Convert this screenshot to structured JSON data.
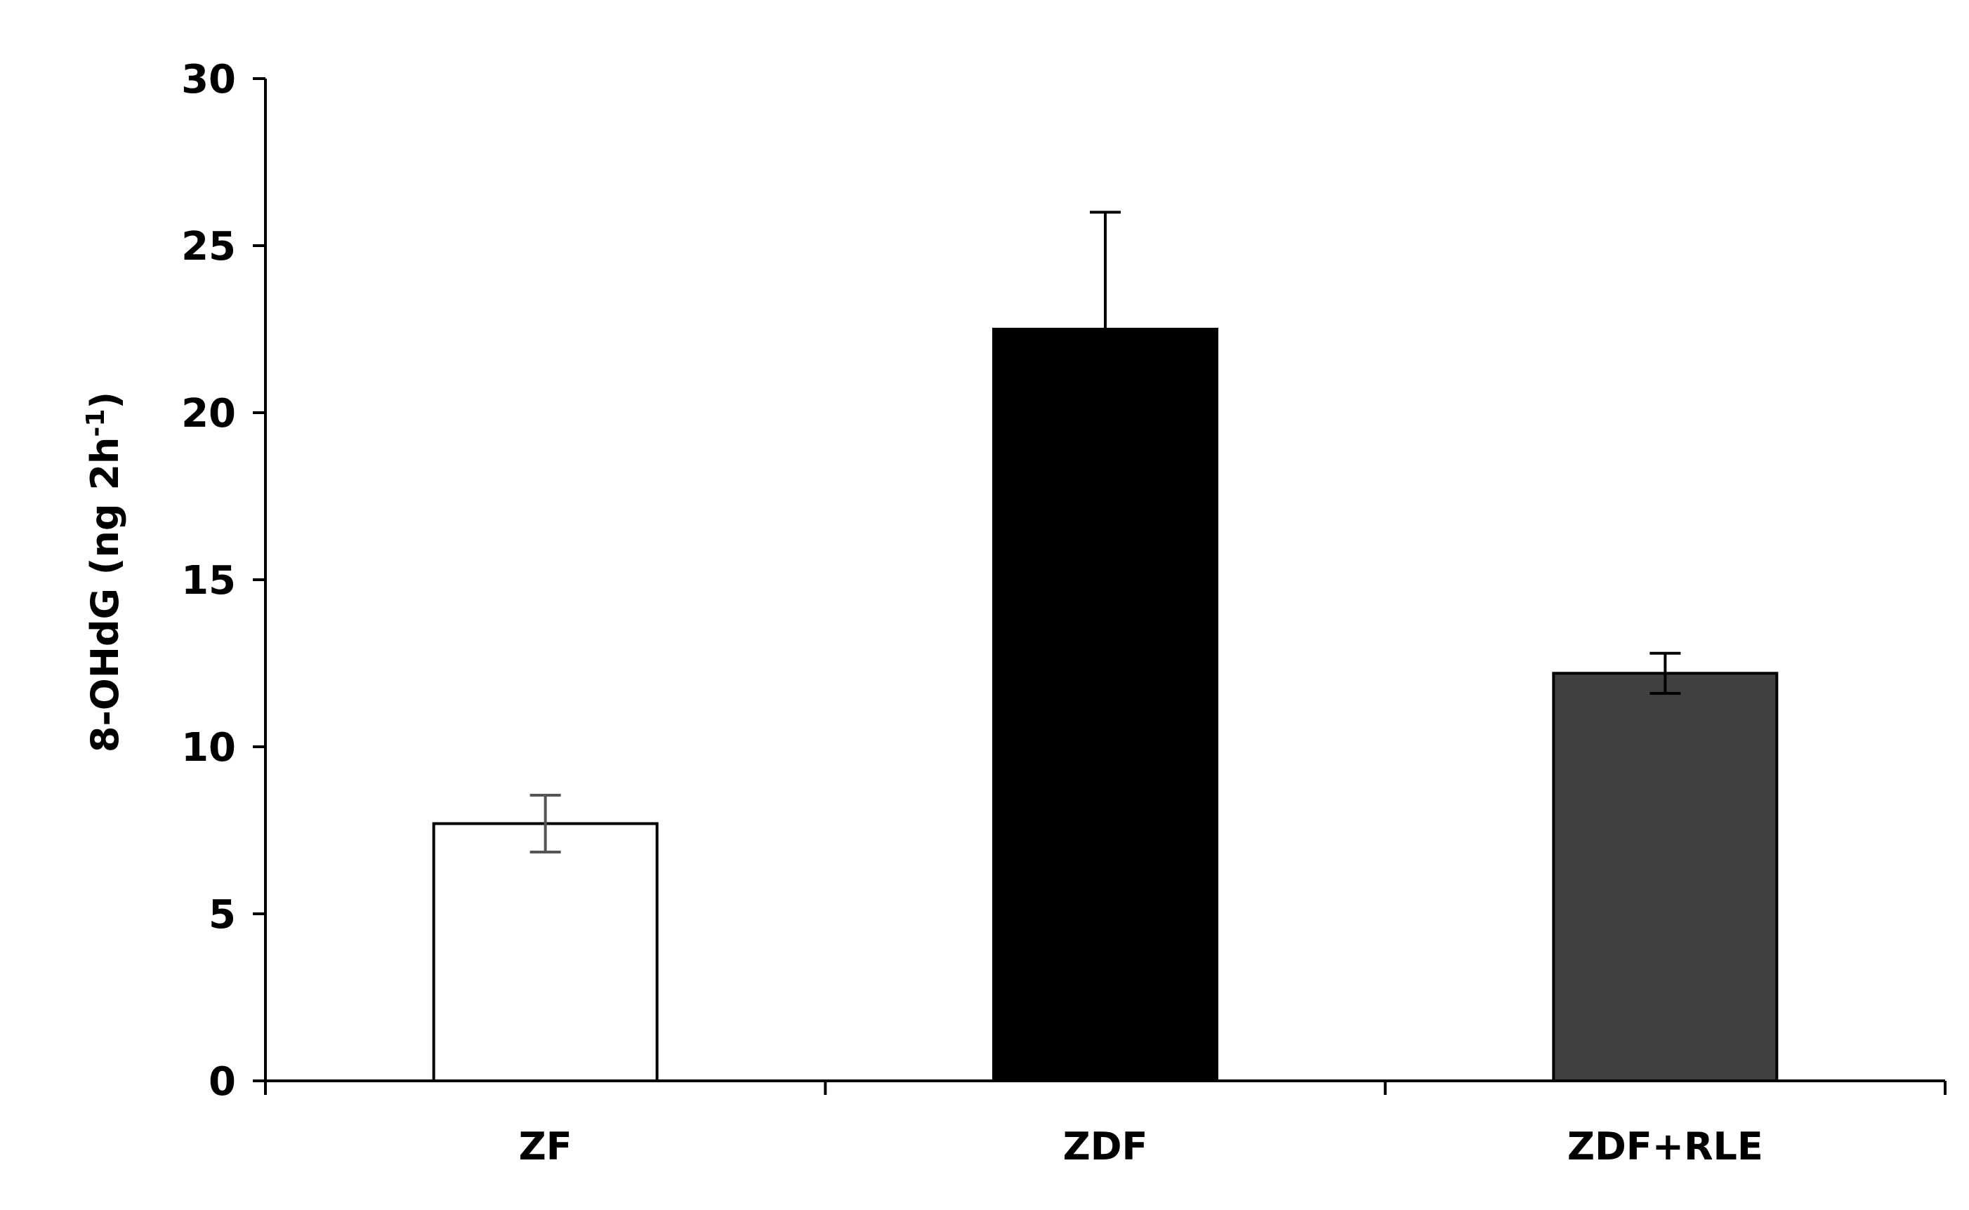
{
  "chart_data": {
    "type": "bar",
    "title": "",
    "xlabel": "",
    "ylabel": "8-OHdG (ng 2h",
    "ylabel_superscript": "-1",
    "ylabel_close": ")",
    "categories": [
      "ZF",
      "ZDF",
      "ZDF+RLE"
    ],
    "values": [
      7.7,
      22.5,
      12.2
    ],
    "errors": [
      0.85,
      3.5,
      0.6
    ],
    "error_colors": [
      "#555555",
      "#000000",
      "#000000"
    ],
    "bar_colors": [
      "#ffffff",
      "#000000",
      "#404040"
    ],
    "ylim": [
      0,
      30
    ],
    "yticks": [
      0,
      5,
      10,
      15,
      20,
      25,
      30
    ],
    "grid": false,
    "legend": "none"
  }
}
